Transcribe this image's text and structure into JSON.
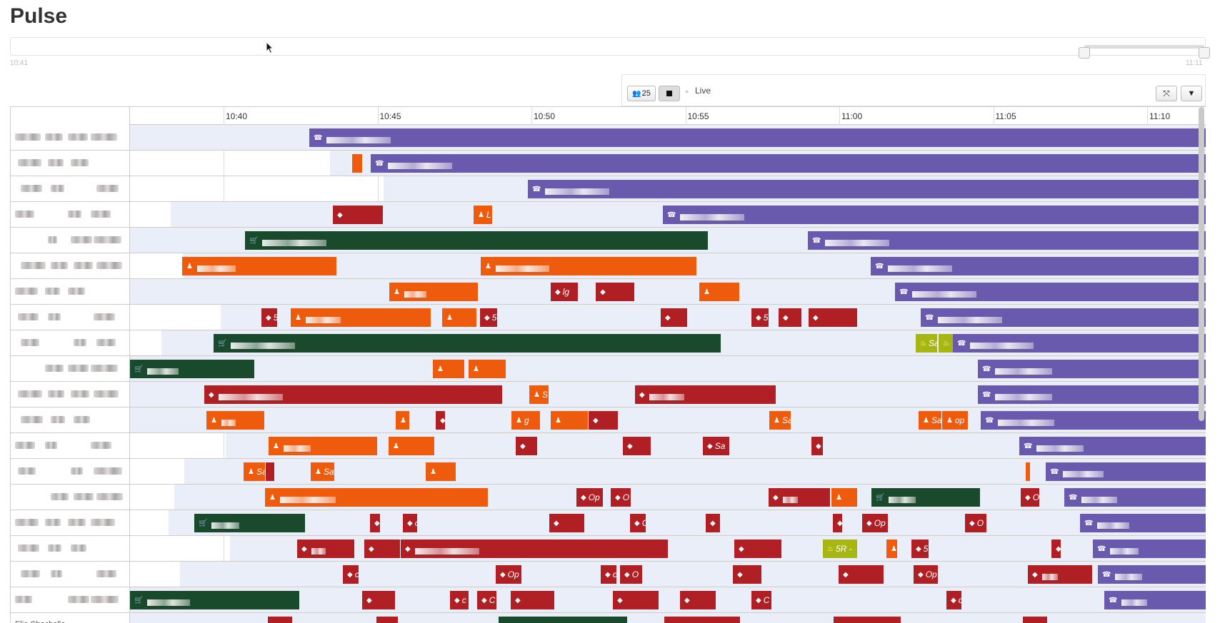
{
  "app": {
    "title": "Pulse"
  },
  "range": {
    "start_label": "10:41",
    "end_label": "11:11"
  },
  "controls": {
    "agents_count": "25",
    "live_label": "Live"
  },
  "axis": {
    "ticks": [
      "10:40",
      "10:45",
      "10:50",
      "10:55",
      "11:00",
      "11:05",
      "11:10"
    ]
  },
  "colors": {
    "call": "#6a5aad",
    "chat": "#ef5b0c",
    "cart": "#1a4a2c",
    "alert": "#b01f24",
    "lime": "#a8b614",
    "shade": "#e9eef8"
  },
  "last_row_label": "Elia Chachallo",
  "rows": [
    {
      "bars": [
        {
          "x": 251,
          "w": 1256,
          "c": "call",
          "i": "☎",
          "t": ""
        }
      ]
    },
    {
      "bars": [
        {
          "x": 311,
          "w": 14,
          "c": "chat",
          "i": "",
          "t": ""
        },
        {
          "x": 337,
          "w": 1170,
          "c": "call",
          "i": "☎",
          "t": ""
        }
      ]
    },
    {
      "bars": [
        {
          "x": 557,
          "w": 950,
          "c": "call",
          "i": "☎",
          "t": ""
        }
      ]
    },
    {
      "bars": [
        {
          "x": 284,
          "w": 70,
          "c": "alert",
          "i": "◆",
          "t": ""
        },
        {
          "x": 481,
          "w": 26,
          "c": "chat",
          "i": "♟",
          "t": "L"
        },
        {
          "x": 746,
          "w": 761,
          "c": "call",
          "i": "☎",
          "t": ""
        }
      ]
    },
    {
      "bars": [
        {
          "x": 161,
          "w": 648,
          "c": "cart",
          "i": "🛒",
          "t": ""
        },
        {
          "x": 949,
          "w": 558,
          "c": "call",
          "i": "☎",
          "t": ""
        }
      ]
    },
    {
      "bars": [
        {
          "x": 73,
          "w": 216,
          "c": "chat",
          "i": "♟",
          "t": ""
        },
        {
          "x": 491,
          "w": 302,
          "c": "chat",
          "i": "♟",
          "t": ""
        },
        {
          "x": 1037,
          "w": 470,
          "c": "call",
          "i": "☎",
          "t": ""
        }
      ]
    },
    {
      "bars": [
        {
          "x": 363,
          "w": 124,
          "c": "chat",
          "i": "♟",
          "t": ""
        },
        {
          "x": 589,
          "w": 38,
          "c": "alert",
          "i": "◆",
          "t": "lg"
        },
        {
          "x": 652,
          "w": 54,
          "c": "alert",
          "i": "◆",
          "t": ""
        },
        {
          "x": 797,
          "w": 56,
          "c": "chat",
          "i": "♟",
          "t": ""
        },
        {
          "x": 1071,
          "w": 436,
          "c": "call",
          "i": "☎",
          "t": ""
        }
      ]
    },
    {
      "bars": [
        {
          "x": 184,
          "w": 22,
          "c": "alert",
          "i": "◆",
          "t": "5"
        },
        {
          "x": 225,
          "w": 196,
          "c": "chat",
          "i": "♟",
          "t": ""
        },
        {
          "x": 437,
          "w": 48,
          "c": "chat",
          "i": "♟",
          "t": ""
        },
        {
          "x": 490,
          "w": 24,
          "c": "alert",
          "i": "◆",
          "t": "5"
        },
        {
          "x": 743,
          "w": 37,
          "c": "alert",
          "i": "◆",
          "t": ""
        },
        {
          "x": 870,
          "w": 24,
          "c": "alert",
          "i": "◆",
          "t": "5"
        },
        {
          "x": 908,
          "w": 32,
          "c": "alert",
          "i": "◆",
          "t": ""
        },
        {
          "x": 950,
          "w": 68,
          "c": "alert",
          "i": "◆",
          "t": ""
        },
        {
          "x": 1107,
          "w": 400,
          "c": "call",
          "i": "☎",
          "t": ""
        }
      ]
    },
    {
      "bars": [
        {
          "x": 117,
          "w": 710,
          "c": "cart",
          "i": "🛒",
          "t": ""
        },
        {
          "x": 1100,
          "w": 30,
          "c": "lime",
          "i": "♨",
          "t": "Sa"
        },
        {
          "x": 1132,
          "w": 20,
          "c": "lime",
          "i": "♨",
          "t": ""
        },
        {
          "x": 1152,
          "w": 355,
          "c": "call",
          "i": "☎",
          "t": ""
        }
      ]
    },
    {
      "bars": [
        {
          "x": 0,
          "w": 174,
          "c": "cart",
          "i": "🛒",
          "t": ""
        },
        {
          "x": 424,
          "w": 44,
          "c": "chat",
          "i": "♟",
          "t": ""
        },
        {
          "x": 474,
          "w": 52,
          "c": "chat",
          "i": "♟",
          "t": ""
        },
        {
          "x": 1187,
          "w": 320,
          "c": "call",
          "i": "☎",
          "t": ""
        }
      ]
    },
    {
      "bars": [
        {
          "x": 104,
          "w": 417,
          "c": "alert",
          "i": "◆",
          "t": ""
        },
        {
          "x": 559,
          "w": 27,
          "c": "chat",
          "i": "♟",
          "t": "S"
        },
        {
          "x": 707,
          "w": 197,
          "c": "alert",
          "i": "◆",
          "t": ""
        },
        {
          "x": 1187,
          "w": 320,
          "c": "call",
          "i": "☎",
          "t": ""
        }
      ]
    },
    {
      "bars": [
        {
          "x": 107,
          "w": 81,
          "c": "chat",
          "i": "♟",
          "t": ""
        },
        {
          "x": 372,
          "w": 19,
          "c": "chat",
          "i": "♟",
          "t": ""
        },
        {
          "x": 428,
          "w": 13,
          "c": "alert",
          "i": "◆",
          "t": ""
        },
        {
          "x": 534,
          "w": 40,
          "c": "chat",
          "i": "♟",
          "t": "g"
        },
        {
          "x": 589,
          "w": 52,
          "c": "chat",
          "i": "♟",
          "t": ""
        },
        {
          "x": 642,
          "w": 41,
          "c": "alert",
          "i": "◆",
          "t": ""
        },
        {
          "x": 895,
          "w": 30,
          "c": "chat",
          "i": "♟",
          "t": "Sa"
        },
        {
          "x": 1104,
          "w": 32,
          "c": "chat",
          "i": "♟",
          "t": "Sa"
        },
        {
          "x": 1137,
          "w": 36,
          "c": "chat",
          "i": "♟",
          "t": "op"
        },
        {
          "x": 1191,
          "w": 316,
          "c": "call",
          "i": "☎",
          "t": ""
        }
      ]
    },
    {
      "bars": [
        {
          "x": 194,
          "w": 152,
          "c": "chat",
          "i": "♟",
          "t": ""
        },
        {
          "x": 362,
          "w": 64,
          "c": "chat",
          "i": "♟",
          "t": ""
        },
        {
          "x": 540,
          "w": 30,
          "c": "alert",
          "i": "◆",
          "t": ""
        },
        {
          "x": 690,
          "w": 39,
          "c": "alert",
          "i": "◆",
          "t": ""
        },
        {
          "x": 802,
          "w": 37,
          "c": "alert",
          "i": "◆",
          "t": "Sa"
        },
        {
          "x": 954,
          "w": 16,
          "c": "alert",
          "i": "◆",
          "t": ""
        },
        {
          "x": 1245,
          "w": 262,
          "c": "call",
          "i": "☎",
          "t": ""
        }
      ]
    },
    {
      "bars": [
        {
          "x": 159,
          "w": 30,
          "c": "chat",
          "i": "♟",
          "t": "Sa"
        },
        {
          "x": 190,
          "w": 12,
          "c": "alert",
          "i": "◆",
          "t": ""
        },
        {
          "x": 253,
          "w": 33,
          "c": "chat",
          "i": "♟",
          "t": "Sa"
        },
        {
          "x": 414,
          "w": 42,
          "c": "chat",
          "i": "♟",
          "t": ""
        },
        {
          "x": 1254,
          "w": 3,
          "c": "chat",
          "i": "",
          "t": ""
        },
        {
          "x": 1282,
          "w": 225,
          "c": "call",
          "i": "☎",
          "t": ""
        }
      ]
    },
    {
      "bars": [
        {
          "x": 189,
          "w": 312,
          "c": "chat",
          "i": "♟",
          "t": ""
        },
        {
          "x": 625,
          "w": 37,
          "c": "alert",
          "i": "◆",
          "t": "Op"
        },
        {
          "x": 673,
          "w": 28,
          "c": "alert",
          "i": "◆",
          "t": "O"
        },
        {
          "x": 894,
          "w": 86,
          "c": "alert",
          "i": "◆",
          "t": ""
        },
        {
          "x": 982,
          "w": 36,
          "c": "chat",
          "i": "♟",
          "t": ""
        },
        {
          "x": 1038,
          "w": 152,
          "c": "cart",
          "i": "🛒",
          "t": ""
        },
        {
          "x": 1247,
          "w": 26,
          "c": "alert",
          "i": "◆",
          "t": "O"
        },
        {
          "x": 1308,
          "w": 199,
          "c": "call",
          "i": "☎",
          "t": ""
        }
      ]
    },
    {
      "bars": [
        {
          "x": 90,
          "w": 155,
          "c": "cart",
          "i": "🛒",
          "t": ""
        },
        {
          "x": 336,
          "w": 14,
          "c": "alert",
          "i": "◆",
          "t": ""
        },
        {
          "x": 382,
          "w": 20,
          "c": "alert",
          "i": "◆",
          "t": "c"
        },
        {
          "x": 587,
          "w": 49,
          "c": "alert",
          "i": "◆",
          "t": ""
        },
        {
          "x": 700,
          "w": 22,
          "c": "alert",
          "i": "◆",
          "t": "C"
        },
        {
          "x": 806,
          "w": 20,
          "c": "alert",
          "i": "◆",
          "t": ""
        },
        {
          "x": 984,
          "w": 13,
          "c": "alert",
          "i": "◆",
          "t": ""
        },
        {
          "x": 1025,
          "w": 36,
          "c": "alert",
          "i": "◆",
          "t": "Op"
        },
        {
          "x": 1169,
          "w": 30,
          "c": "alert",
          "i": "◆",
          "t": "O"
        },
        {
          "x": 1330,
          "w": 177,
          "c": "call",
          "i": "☎",
          "t": ""
        }
      ]
    },
    {
      "bars": [
        {
          "x": 234,
          "w": 80,
          "c": "alert",
          "i": "◆",
          "t": ""
        },
        {
          "x": 328,
          "w": 50,
          "c": "alert",
          "i": "◆",
          "t": ""
        },
        {
          "x": 379,
          "w": 374,
          "c": "alert",
          "i": "◆",
          "t": ""
        },
        {
          "x": 846,
          "w": 66,
          "c": "alert",
          "i": "◆",
          "t": ""
        },
        {
          "x": 970,
          "w": 48,
          "c": "lime",
          "i": "♨",
          "t": "5R -"
        },
        {
          "x": 1059,
          "w": 15,
          "c": "chat",
          "i": "♟",
          "t": ""
        },
        {
          "x": 1094,
          "w": 24,
          "c": "alert",
          "i": "◆",
          "t": "5"
        },
        {
          "x": 1290,
          "w": 13,
          "c": "alert",
          "i": "◆",
          "t": ""
        },
        {
          "x": 1348,
          "w": 159,
          "c": "call",
          "i": "☎",
          "t": ""
        }
      ]
    },
    {
      "bars": [
        {
          "x": 298,
          "w": 22,
          "c": "alert",
          "i": "◆",
          "t": "c"
        },
        {
          "x": 512,
          "w": 36,
          "c": "alert",
          "i": "◆",
          "t": "Op"
        },
        {
          "x": 659,
          "w": 22,
          "c": "alert",
          "i": "◆",
          "t": "c"
        },
        {
          "x": 686,
          "w": 31,
          "c": "alert",
          "i": "◆",
          "t": "O"
        },
        {
          "x": 844,
          "w": 40,
          "c": "alert",
          "i": "◆",
          "t": ""
        },
        {
          "x": 992,
          "w": 63,
          "c": "alert",
          "i": "◆",
          "t": ""
        },
        {
          "x": 1097,
          "w": 34,
          "c": "alert",
          "i": "◆",
          "t": "Op"
        },
        {
          "x": 1257,
          "w": 90,
          "c": "alert",
          "i": "◆",
          "t": ""
        },
        {
          "x": 1355,
          "w": 152,
          "c": "call",
          "i": "☎",
          "t": ""
        }
      ]
    },
    {
      "bars": [
        {
          "x": 0,
          "w": 237,
          "c": "cart",
          "i": "🛒",
          "t": ""
        },
        {
          "x": 325,
          "w": 46,
          "c": "alert",
          "i": "◆",
          "t": ""
        },
        {
          "x": 448,
          "w": 26,
          "c": "alert",
          "i": "◆",
          "t": "c"
        },
        {
          "x": 486,
          "w": 27,
          "c": "alert",
          "i": "◆",
          "t": "C"
        },
        {
          "x": 533,
          "w": 61,
          "c": "alert",
          "i": "◆",
          "t": ""
        },
        {
          "x": 676,
          "w": 64,
          "c": "alert",
          "i": "◆",
          "t": ""
        },
        {
          "x": 770,
          "w": 50,
          "c": "alert",
          "i": "◆",
          "t": ""
        },
        {
          "x": 870,
          "w": 28,
          "c": "alert",
          "i": "◆",
          "t": "C"
        },
        {
          "x": 1143,
          "w": 21,
          "c": "alert",
          "i": "◆",
          "t": "c"
        },
        {
          "x": 1364,
          "w": 143,
          "c": "call",
          "i": "☎",
          "t": ""
        }
      ]
    },
    {
      "bars": [
        {
          "x": 193,
          "w": 34,
          "c": "alert",
          "i": "",
          "t": ""
        },
        {
          "x": 345,
          "w": 30,
          "c": "alert",
          "i": "",
          "t": ""
        },
        {
          "x": 516,
          "w": 180,
          "c": "cart",
          "i": "",
          "t": ""
        },
        {
          "x": 748,
          "w": 106,
          "c": "alert",
          "i": "",
          "t": ""
        },
        {
          "x": 985,
          "w": 94,
          "c": "alert",
          "i": "",
          "t": ""
        },
        {
          "x": 1250,
          "w": 34,
          "c": "alert",
          "i": "",
          "t": ""
        }
      ]
    }
  ]
}
